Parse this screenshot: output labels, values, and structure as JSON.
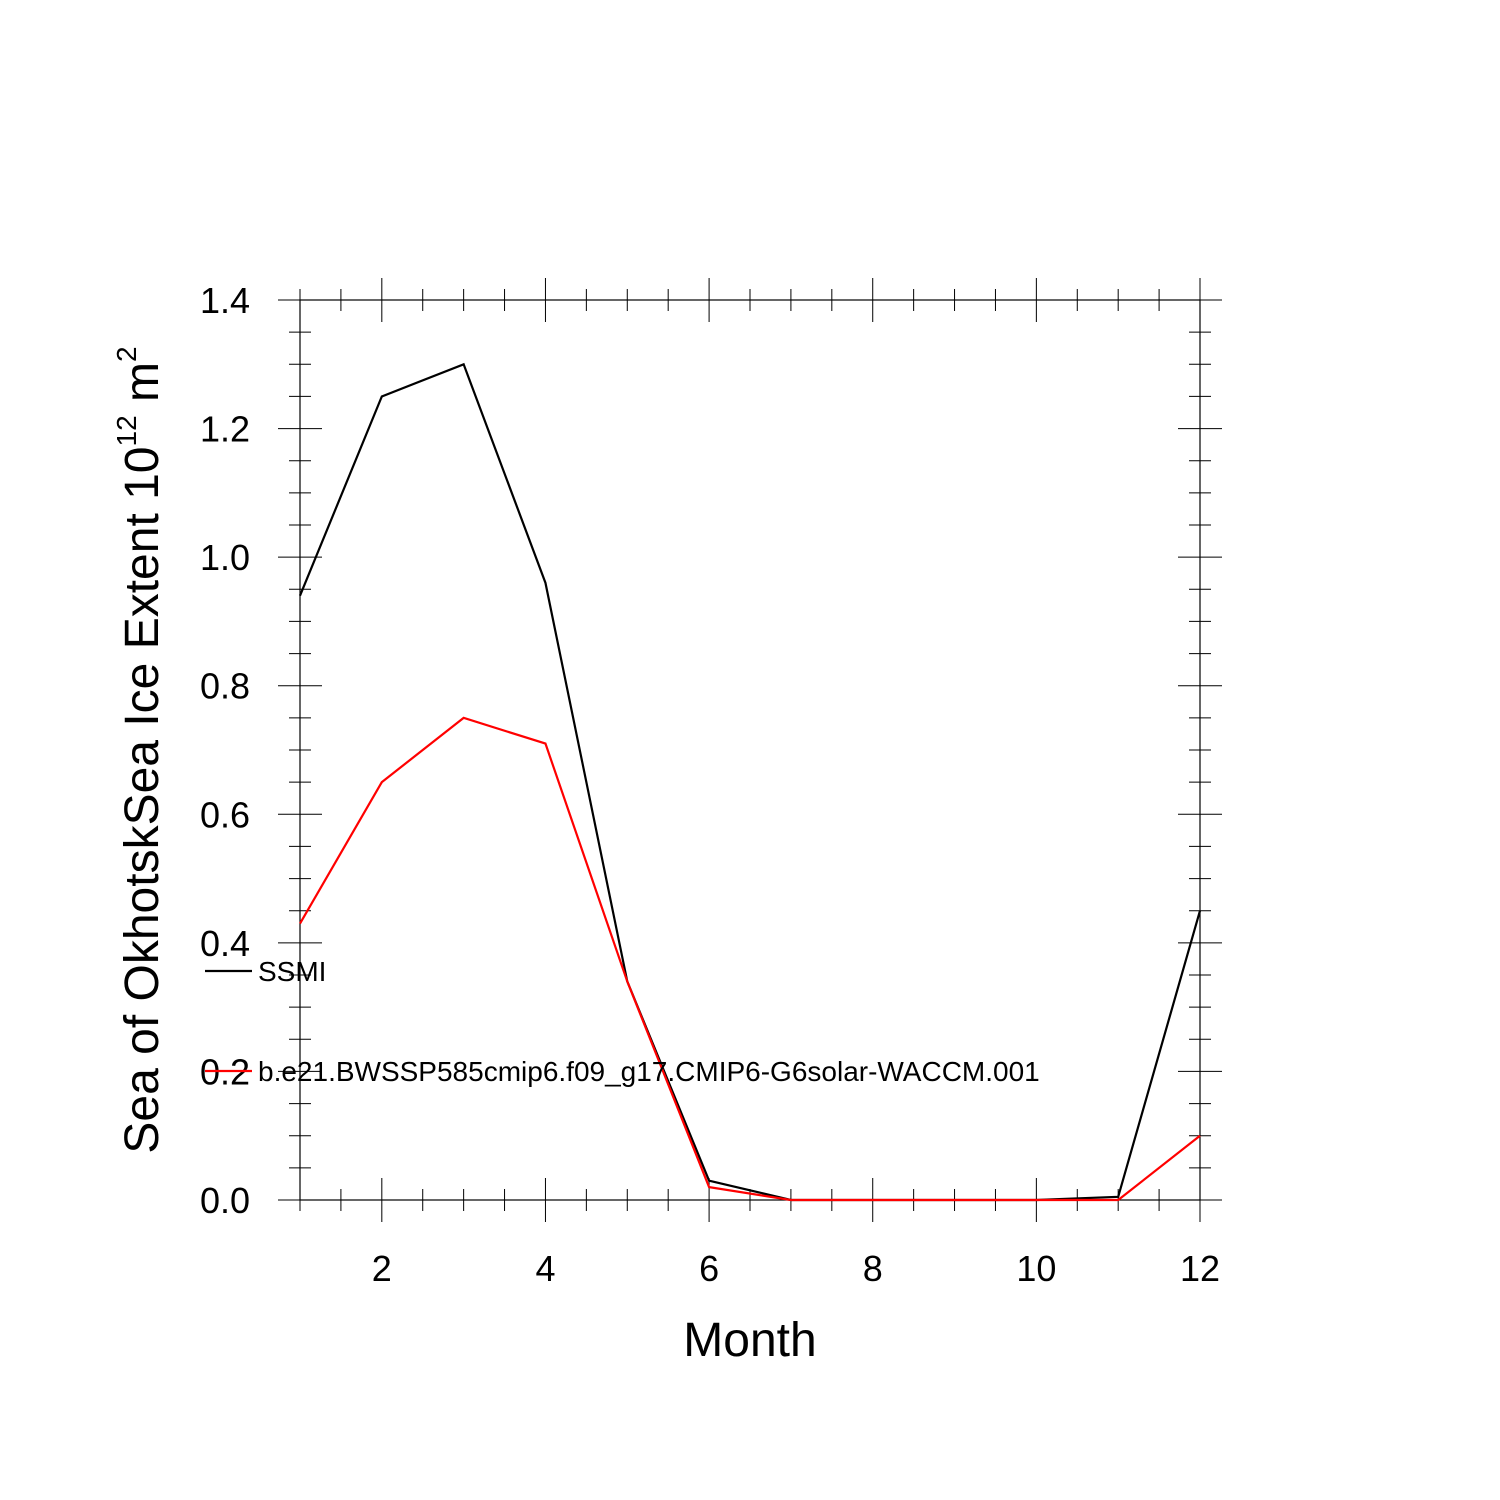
{
  "chart_data": {
    "type": "line",
    "title": "",
    "xlabel": "Month",
    "ylabel": "Sea of OkhotskSea Ice Extent 10",
    "ylabel_superscript": "12",
    "ylabel_unit": " m",
    "ylabel_unit_superscript": "2",
    "xlim": [
      1,
      12
    ],
    "ylim": [
      0,
      1.4
    ],
    "x_ticks": [
      2,
      4,
      6,
      8,
      10,
      12
    ],
    "x_tick_labels": [
      "2",
      "4",
      "6",
      "8",
      "10",
      "12"
    ],
    "y_ticks": [
      0,
      0.2,
      0.4,
      0.6,
      0.8,
      1.0,
      1.2,
      1.4
    ],
    "y_tick_labels": [
      "0.0",
      "0.2",
      "0.4",
      "0.6",
      "0.8",
      "1.0",
      "1.2",
      "1.4"
    ],
    "x": [
      1,
      2,
      3,
      4,
      5,
      6,
      7,
      8,
      9,
      10,
      11,
      12
    ],
    "series": [
      {
        "name": "SSMI",
        "color": "#000000",
        "values": [
          0.94,
          1.25,
          1.3,
          0.96,
          0.34,
          0.03,
          0.0,
          0.0,
          0.0,
          0.0,
          0.005,
          0.45
        ]
      },
      {
        "name": "b.e21.BWSSP585cmip6.f09_g17.CMIP6-G6solar-WACCM.001",
        "color": "#ff0000",
        "values": [
          0.43,
          0.65,
          0.75,
          0.71,
          0.34,
          0.02,
          0.0,
          0.0,
          0.0,
          0.0,
          0.0,
          0.1
        ]
      }
    ],
    "legend_position": "left, inside plot",
    "grid": false
  }
}
